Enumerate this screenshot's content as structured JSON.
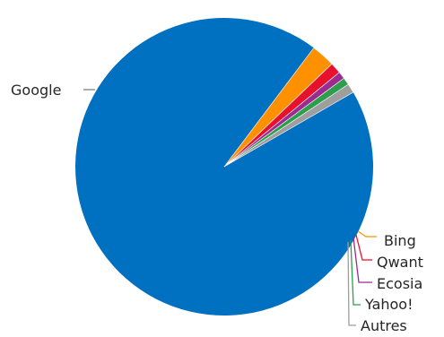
{
  "chart_data": {
    "type": "pie",
    "title": "",
    "legend": "none",
    "labels": "outside-with-leader-lines",
    "start_angle_deg": 330,
    "slices": [
      {
        "name": "Google",
        "value": 93.6,
        "color": "#0070C0"
      },
      {
        "name": "Bing",
        "value": 2.6,
        "color": "#FF9100"
      },
      {
        "name": "Qwant",
        "value": 1.2,
        "color": "#E8112D"
      },
      {
        "name": "Ecosia",
        "value": 0.8,
        "color": "#9C2A8F"
      },
      {
        "name": "Yahoo!",
        "value": 0.8,
        "color": "#2E9E4E"
      },
      {
        "name": "Autres",
        "value": 1.0,
        "color": "#9E9E9E"
      }
    ]
  }
}
